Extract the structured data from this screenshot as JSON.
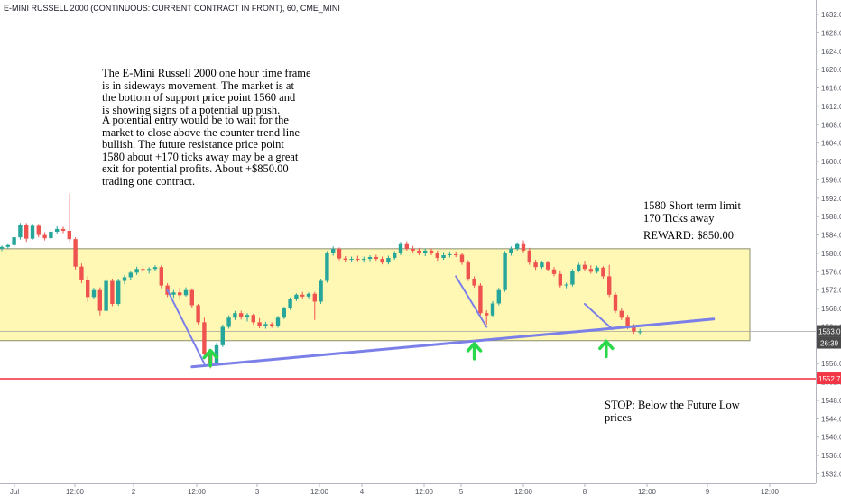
{
  "header": {
    "symbol_title": "E-MINI RUSSELL 2000 (CONTINUOUS: CURRENT CONTRACT IN FRONT), 60, CME_MINI"
  },
  "annotations": {
    "main_paragraph_1": "The E-Mini Russell 2000 one hour time frame\nis in sideways movement. The market is at\nthe bottom of support price point 1560 and\nis showing signs of a potential up push.",
    "main_paragraph_2": "A potential entry would be to wait for the\nmarket to close above the counter trend line\nbullish. The future resistance price point\n1580 about +170 ticks away may be a great\nexit for potential profits. About +$850.00\ntrading one contract.",
    "target_note": "1580 Short term limit\n170 Ticks away",
    "reward_note": "REWARD: $850.00",
    "stop_note": "STOP: Below the Future Low\nprices"
  },
  "chart_data": {
    "type": "candlestick",
    "title": "E-MINI RUSSELL 2000 (CONTINUOUS: CURRENT CONTRACT IN FRONT), 60, CME_MINI",
    "ylim": [
      1530,
      1634
    ],
    "y_ticks": [
      "1532.0",
      "1536.0",
      "1540.0",
      "1544.0",
      "1548.0",
      "1552.0",
      "1556.0",
      "1560.0",
      "1564.0",
      "1568.0",
      "1572.0",
      "1576.0",
      "1580.0",
      "1584.0",
      "1588.0",
      "1592.0",
      "1596.0",
      "1600.0",
      "1604.0",
      "1608.0",
      "1612.0",
      "1616.0",
      "1620.0",
      "1624.0",
      "1628.0",
      "1632.0"
    ],
    "x_ticks": [
      "Jul",
      "12:00",
      "2",
      "12:00",
      "3",
      "12:00",
      "4",
      "12:00",
      "5",
      "12:00",
      "8",
      "12:00",
      "9",
      "12:00"
    ],
    "price_labels": {
      "current_price": "1563.0",
      "countdown": "26:39",
      "stop_price": "1552.7"
    },
    "zones": [
      {
        "name": "support-resistance-zone",
        "x_start": 0,
        "x_end": 112,
        "y_low": 1561,
        "y_high": 1581
      }
    ],
    "horizontal_lines": [
      {
        "name": "stop-line",
        "y": 1552.7,
        "color": "#f23645"
      },
      {
        "name": "current-price-line",
        "y": 1563.0,
        "color": "#9e9e9e"
      }
    ],
    "trend_lines": [
      {
        "name": "support-trendline",
        "x1": 31,
        "y1": 1555.3,
        "x2": 116,
        "y2": 1565.7,
        "color": "#7b7fe8"
      },
      {
        "name": "counter-trend-1",
        "x1": 27,
        "y1": 1572,
        "x2": 33,
        "y2": 1556,
        "color": "#7b7fe8"
      },
      {
        "name": "counter-trend-2",
        "x1": 74,
        "y1": 1575,
        "x2": 79,
        "y2": 1564,
        "color": "#7b7fe8"
      },
      {
        "name": "counter-trend-3",
        "x1": 95,
        "y1": 1569,
        "x2": 99.5,
        "y2": 1563.5,
        "color": "#7b7fe8"
      }
    ],
    "markers": [
      {
        "name": "up-arrow-1",
        "x": 34,
        "y": 1557.5
      },
      {
        "name": "up-arrow-2",
        "x": 77,
        "y": 1559
      },
      {
        "name": "up-arrow-3",
        "x": 98.5,
        "y": 1559.5
      }
    ],
    "candles": [
      [
        1581.0,
        1581.7,
        1580.5,
        1581.4
      ],
      [
        1581.4,
        1582.0,
        1581.0,
        1581.8
      ],
      [
        1581.8,
        1583.8,
        1581.5,
        1583.5
      ],
      [
        1583.5,
        1586.6,
        1583.0,
        1586.1
      ],
      [
        1586.1,
        1586.6,
        1582.5,
        1583.2
      ],
      [
        1583.2,
        1586.5,
        1582.9,
        1586.0
      ],
      [
        1586.0,
        1586.4,
        1583.5,
        1584.0
      ],
      [
        1584.0,
        1584.6,
        1582.8,
        1583.3
      ],
      [
        1583.3,
        1585.2,
        1583.0,
        1584.7
      ],
      [
        1584.7,
        1585.9,
        1584.2,
        1585.3
      ],
      [
        1585.3,
        1585.8,
        1584.4,
        1584.9
      ],
      [
        1584.9,
        1593.0,
        1582.5,
        1583.1
      ],
      [
        1583.1,
        1583.5,
        1576.5,
        1577.1
      ],
      [
        1577.1,
        1577.8,
        1573.5,
        1574.3
      ],
      [
        1574.3,
        1575.0,
        1569.5,
        1570.5
      ],
      [
        1570.5,
        1572.5,
        1570.0,
        1572.0
      ],
      [
        1572.0,
        1572.6,
        1566.5,
        1567.5
      ],
      [
        1567.5,
        1574.5,
        1567.0,
        1574.0
      ],
      [
        1574.0,
        1574.5,
        1568.5,
        1569.0
      ],
      [
        1569.0,
        1574.5,
        1568.6,
        1574.0
      ],
      [
        1574.0,
        1575.3,
        1573.3,
        1574.8
      ],
      [
        1574.8,
        1576.2,
        1574.3,
        1575.8
      ],
      [
        1575.8,
        1577.1,
        1575.3,
        1576.6
      ],
      [
        1576.6,
        1577.4,
        1575.8,
        1576.4
      ],
      [
        1576.4,
        1577.0,
        1575.6,
        1576.6
      ],
      [
        1576.6,
        1577.4,
        1576.1,
        1577.0
      ],
      [
        1577.0,
        1577.4,
        1572.4,
        1573.0
      ],
      [
        1573.0,
        1573.5,
        1570.5,
        1571.0
      ],
      [
        1571.0,
        1572.0,
        1570.3,
        1571.5
      ],
      [
        1571.5,
        1572.5,
        1570.2,
        1570.9
      ],
      [
        1570.9,
        1572.6,
        1570.6,
        1572.0
      ],
      [
        1572.0,
        1572.4,
        1568.2,
        1568.7
      ],
      [
        1568.7,
        1569.0,
        1564.5,
        1565.0
      ],
      [
        1565.0,
        1566.0,
        1557.0,
        1558.0
      ],
      [
        1558.0,
        1558.6,
        1555.0,
        1556.0
      ],
      [
        1556.0,
        1560.5,
        1555.5,
        1560.0
      ],
      [
        1560.0,
        1564.5,
        1559.6,
        1564.0
      ],
      [
        1564.0,
        1566.5,
        1563.6,
        1566.0
      ],
      [
        1566.0,
        1567.5,
        1565.5,
        1567.0
      ],
      [
        1567.0,
        1567.5,
        1565.6,
        1566.1
      ],
      [
        1566.1,
        1567.0,
        1565.2,
        1566.6
      ],
      [
        1566.6,
        1566.9,
        1564.5,
        1565.0
      ],
      [
        1565.0,
        1565.9,
        1563.7,
        1564.1
      ],
      [
        1564.1,
        1565.1,
        1563.6,
        1564.6
      ],
      [
        1564.6,
        1565.0,
        1563.8,
        1564.2
      ],
      [
        1564.2,
        1566.4,
        1563.8,
        1566.0
      ],
      [
        1566.0,
        1568.4,
        1565.7,
        1568.0
      ],
      [
        1568.0,
        1570.4,
        1567.7,
        1570.0
      ],
      [
        1570.0,
        1571.3,
        1569.6,
        1571.0
      ],
      [
        1571.0,
        1571.6,
        1570.2,
        1570.6
      ],
      [
        1570.6,
        1571.5,
        1570.2,
        1571.2
      ],
      [
        1571.2,
        1571.6,
        1565.5,
        1569.5
      ],
      [
        1569.5,
        1574.5,
        1569.0,
        1574.0
      ],
      [
        1574.0,
        1580.5,
        1573.6,
        1580.0
      ],
      [
        1580.0,
        1581.5,
        1579.5,
        1581.0
      ],
      [
        1581.0,
        1581.3,
        1578.5,
        1578.9
      ],
      [
        1578.9,
        1579.4,
        1578.1,
        1578.6
      ],
      [
        1578.6,
        1579.3,
        1578.1,
        1578.8
      ],
      [
        1578.8,
        1579.5,
        1578.3,
        1578.6
      ],
      [
        1578.6,
        1579.3,
        1578.0,
        1578.8
      ],
      [
        1578.8,
        1579.6,
        1578.3,
        1579.2
      ],
      [
        1579.2,
        1579.7,
        1578.4,
        1578.8
      ],
      [
        1578.8,
        1579.3,
        1577.6,
        1578.0
      ],
      [
        1578.0,
        1579.5,
        1577.6,
        1579.0
      ],
      [
        1579.0,
        1580.5,
        1578.6,
        1580.0
      ],
      [
        1580.0,
        1582.5,
        1579.6,
        1582.0
      ],
      [
        1582.0,
        1582.6,
        1580.6,
        1581.0
      ],
      [
        1581.0,
        1581.6,
        1580.2,
        1580.6
      ],
      [
        1580.6,
        1581.2,
        1579.6,
        1580.1
      ],
      [
        1580.1,
        1581.0,
        1579.4,
        1580.6
      ],
      [
        1580.6,
        1581.1,
        1579.6,
        1580.0
      ],
      [
        1580.0,
        1580.6,
        1578.4,
        1579.0
      ],
      [
        1579.0,
        1580.3,
        1578.6,
        1579.6
      ],
      [
        1579.6,
        1580.4,
        1579.1,
        1579.8
      ],
      [
        1579.8,
        1580.4,
        1579.2,
        1579.7
      ],
      [
        1579.7,
        1580.0,
        1577.5,
        1578.0
      ],
      [
        1578.0,
        1578.5,
        1574.0,
        1574.5
      ],
      [
        1574.5,
        1575.0,
        1572.5,
        1573.0
      ],
      [
        1573.0,
        1573.5,
        1566.5,
        1567.0
      ],
      [
        1567.0,
        1567.6,
        1564.5,
        1566.5
      ],
      [
        1566.5,
        1569.6,
        1566.1,
        1569.1
      ],
      [
        1569.1,
        1572.5,
        1568.7,
        1572.0
      ],
      [
        1572.0,
        1580.5,
        1571.6,
        1580.0
      ],
      [
        1580.0,
        1581.5,
        1579.5,
        1581.0
      ],
      [
        1581.0,
        1582.4,
        1580.6,
        1582.0
      ],
      [
        1582.0,
        1582.8,
        1580.2,
        1580.6
      ],
      [
        1580.6,
        1581.2,
        1577.5,
        1578.0
      ],
      [
        1578.0,
        1578.6,
        1576.4,
        1577.0
      ],
      [
        1577.0,
        1578.4,
        1576.6,
        1578.0
      ],
      [
        1578.0,
        1578.4,
        1576.1,
        1576.5
      ],
      [
        1576.5,
        1577.0,
        1575.0,
        1575.5
      ],
      [
        1575.5,
        1576.3,
        1572.5,
        1573.0
      ],
      [
        1573.0,
        1573.6,
        1572.4,
        1573.2
      ],
      [
        1573.2,
        1576.6,
        1572.8,
        1576.2
      ],
      [
        1576.2,
        1578.0,
        1575.8,
        1577.5
      ],
      [
        1577.5,
        1578.4,
        1576.2,
        1576.6
      ],
      [
        1576.6,
        1577.4,
        1575.6,
        1576.0
      ],
      [
        1576.0,
        1577.3,
        1575.6,
        1576.9
      ],
      [
        1576.9,
        1577.2,
        1574.5,
        1575.0
      ],
      [
        1575.0,
        1577.5,
        1570.5,
        1571.0
      ],
      [
        1571.0,
        1571.5,
        1567.0,
        1567.5
      ],
      [
        1567.5,
        1568.0,
        1565.5,
        1566.0
      ],
      [
        1566.0,
        1566.6,
        1563.5,
        1564.0
      ],
      [
        1564.0,
        1564.6,
        1562.5,
        1563.0
      ],
      [
        1563.0,
        1563.6,
        1562.4,
        1563.0
      ]
    ]
  }
}
